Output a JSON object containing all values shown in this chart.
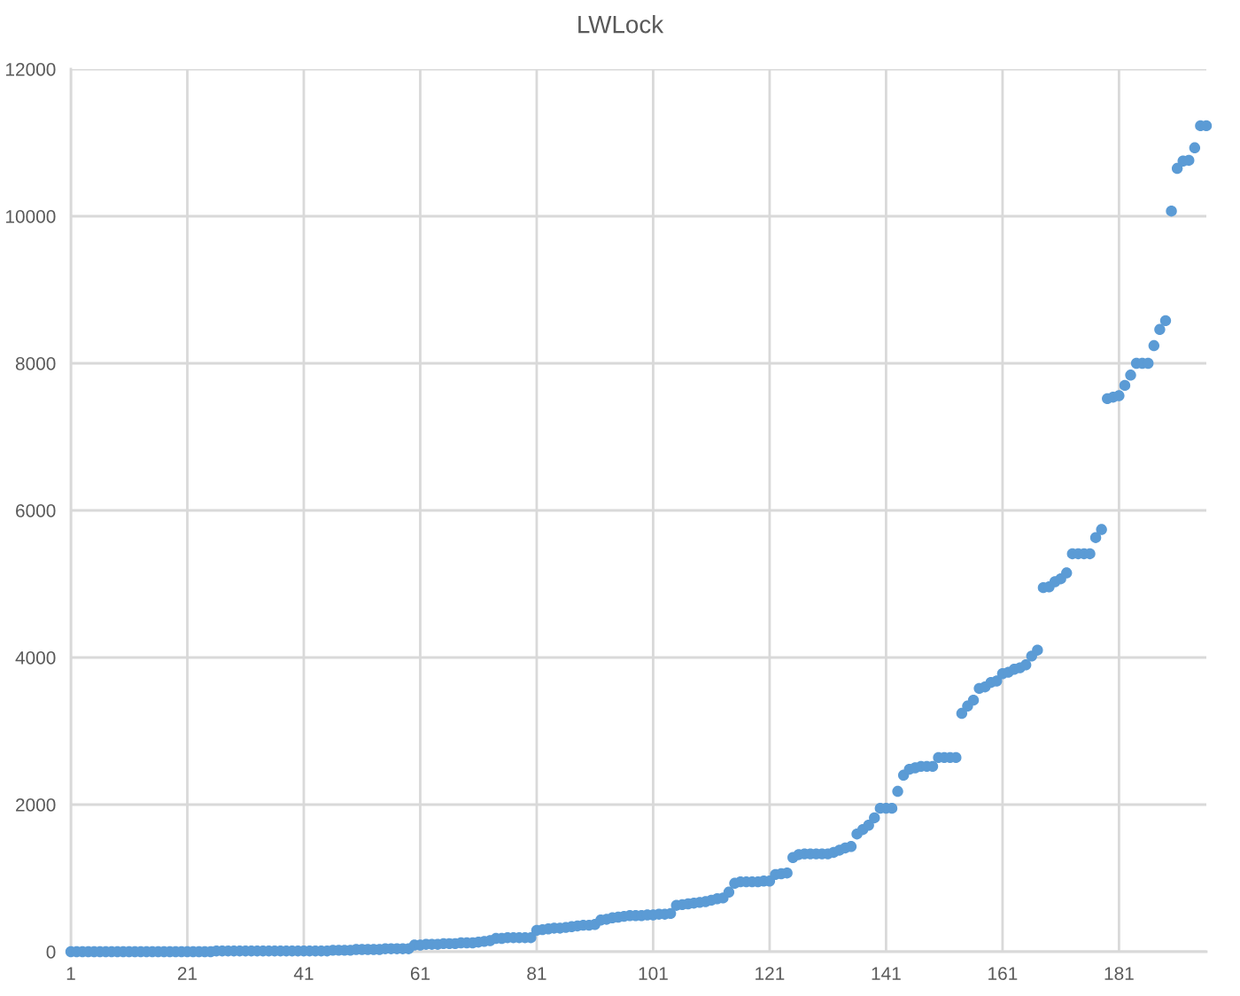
{
  "chart_data": {
    "type": "scatter",
    "title": "LWLock",
    "x": [
      1,
      2,
      3,
      4,
      5,
      6,
      7,
      8,
      9,
      10,
      11,
      12,
      13,
      14,
      15,
      16,
      17,
      18,
      19,
      20,
      21,
      22,
      23,
      24,
      25,
      26,
      27,
      28,
      29,
      30,
      31,
      32,
      33,
      34,
      35,
      36,
      37,
      38,
      39,
      40,
      41,
      42,
      43,
      44,
      45,
      46,
      47,
      48,
      49,
      50,
      51,
      52,
      53,
      54,
      55,
      56,
      57,
      58,
      59,
      60,
      61,
      62,
      63,
      64,
      65,
      66,
      67,
      68,
      69,
      70,
      71,
      72,
      73,
      74,
      75,
      76,
      77,
      78,
      79,
      80,
      81,
      82,
      83,
      84,
      85,
      86,
      87,
      88,
      89,
      90,
      91,
      92,
      93,
      94,
      95,
      96,
      97,
      98,
      99,
      100,
      101,
      102,
      103,
      104,
      105,
      106,
      107,
      108,
      109,
      110,
      111,
      112,
      113,
      114,
      115,
      116,
      117,
      118,
      119,
      120,
      121,
      122,
      123,
      124,
      125,
      126,
      127,
      128,
      129,
      130,
      131,
      132,
      133,
      134,
      135,
      136,
      137,
      138,
      139,
      140,
      141,
      142,
      143,
      144,
      145,
      146,
      147,
      148,
      149,
      150,
      151,
      152,
      153,
      154,
      155,
      156,
      157,
      158,
      159,
      160,
      161,
      162,
      163,
      164,
      165,
      166,
      167,
      168,
      169,
      170,
      171,
      172,
      173,
      174,
      175,
      176,
      177,
      178,
      179,
      180,
      181,
      182,
      183,
      184,
      185,
      186,
      187,
      188,
      189,
      190,
      191,
      192,
      193,
      194,
      195,
      196
    ],
    "values": [
      0,
      0,
      0,
      0,
      0,
      0,
      0,
      0,
      0,
      0,
      0,
      0,
      0,
      0,
      0,
      0,
      0,
      0,
      0,
      0,
      0,
      0,
      0,
      0,
      0,
      10,
      10,
      10,
      10,
      10,
      10,
      10,
      10,
      10,
      10,
      10,
      10,
      10,
      10,
      10,
      10,
      10,
      10,
      10,
      10,
      20,
      20,
      20,
      20,
      30,
      30,
      30,
      30,
      30,
      40,
      40,
      40,
      40,
      40,
      90,
      90,
      100,
      100,
      100,
      110,
      110,
      110,
      120,
      120,
      120,
      130,
      140,
      150,
      180,
      180,
      190,
      190,
      190,
      190,
      190,
      290,
      300,
      310,
      320,
      320,
      330,
      340,
      350,
      360,
      360,
      370,
      430,
      440,
      460,
      470,
      480,
      490,
      490,
      490,
      500,
      500,
      510,
      510,
      520,
      630,
      640,
      650,
      660,
      670,
      680,
      700,
      720,
      730,
      810,
      930,
      950,
      950,
      950,
      950,
      960,
      960,
      1050,
      1060,
      1070,
      1280,
      1320,
      1330,
      1330,
      1330,
      1330,
      1330,
      1350,
      1380,
      1410,
      1430,
      1600,
      1660,
      1720,
      1820,
      1950,
      1950,
      1950,
      2180,
      2400,
      2480,
      2500,
      2520,
      2520,
      2520,
      2640,
      2640,
      2640,
      2640,
      3240,
      3340,
      3420,
      3580,
      3600,
      3660,
      3680,
      3780,
      3800,
      3840,
      3860,
      3900,
      4020,
      4100,
      4950,
      4960,
      5030,
      5070,
      5150,
      5410,
      5410,
      5410,
      5410,
      5630,
      5740,
      7520,
      7540,
      7560,
      7700,
      7840,
      8000,
      8000,
      8000,
      8240,
      8460,
      8580,
      10070,
      10650,
      10750,
      10760,
      10930,
      11230,
      11230
    ],
    "color": "#5b9bd5",
    "marker": "circle",
    "xlim": [
      1,
      196
    ],
    "xticks": [
      1,
      21,
      41,
      61,
      81,
      101,
      121,
      141,
      161,
      181
    ],
    "ylim": [
      0,
      12000
    ],
    "yticks": [
      0,
      2000,
      4000,
      6000,
      8000,
      10000,
      12000
    ],
    "grid": true
  }
}
